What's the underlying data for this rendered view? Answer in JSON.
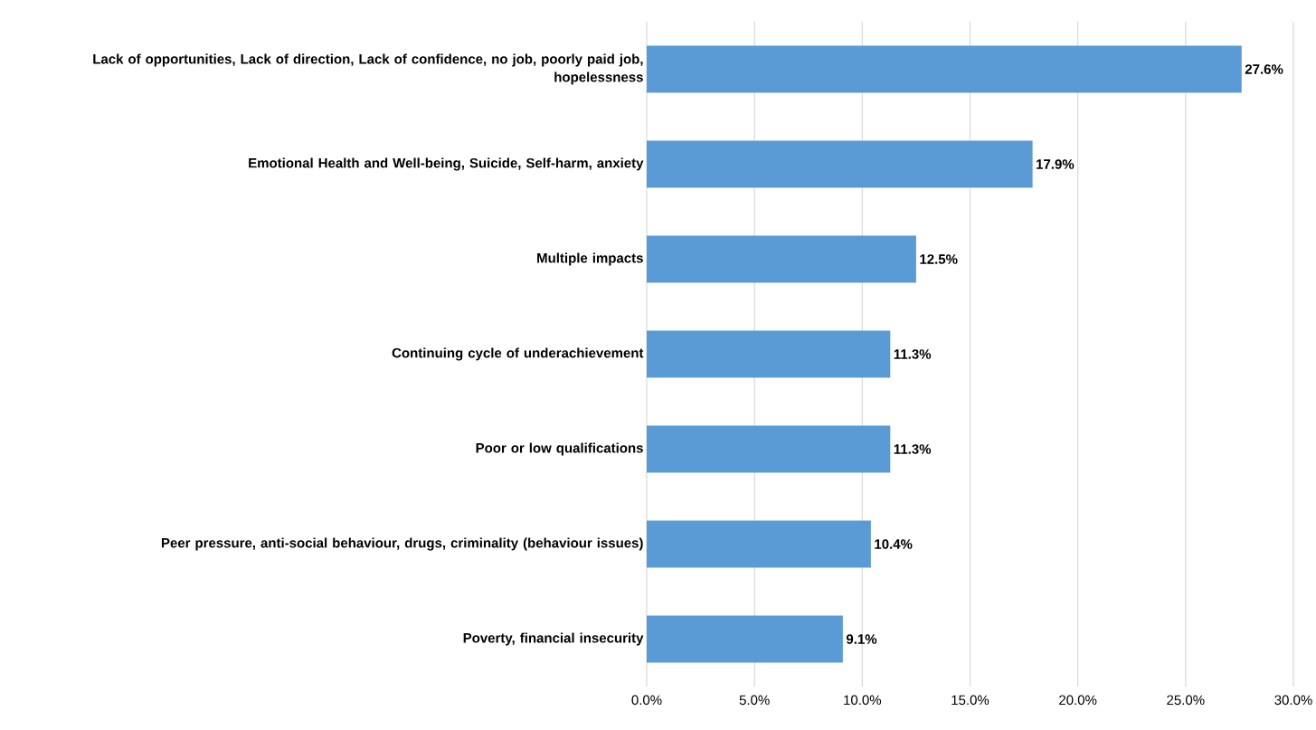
{
  "chart_data": {
    "type": "bar",
    "orientation": "horizontal",
    "categories": [
      "Lack of opportunities, Lack of direction, Lack of confidence, no job, poorly paid job, hopelessness",
      "Emotional Health and Well-being, Suicide,  Self-harm, anxiety",
      "Multiple impacts",
      "Continuing cycle of underachievement",
      "Poor or low qualifications",
      "Peer pressure, anti-social behaviour, drugs, criminality (behaviour issues)",
      "Poverty, financial insecurity"
    ],
    "values": [
      27.6,
      17.9,
      12.5,
      11.3,
      11.3,
      10.4,
      9.1
    ],
    "value_labels": [
      "27.6%",
      "17.9%",
      "12.5%",
      "11.3%",
      "11.3%",
      "10.4%",
      "9.1%"
    ],
    "color": "#5b9bd5",
    "xlim": [
      0,
      30
    ],
    "xticks": [
      {
        "value": 0,
        "label": "0.0%"
      },
      {
        "value": 5,
        "label": "5.0%"
      },
      {
        "value": 10,
        "label": "10.0%"
      },
      {
        "value": 15,
        "label": "15.0%"
      },
      {
        "value": 20,
        "label": "20.0%"
      },
      {
        "value": 25,
        "label": "25.0%"
      },
      {
        "value": 30,
        "label": "30.0%"
      }
    ],
    "grid": "x"
  }
}
